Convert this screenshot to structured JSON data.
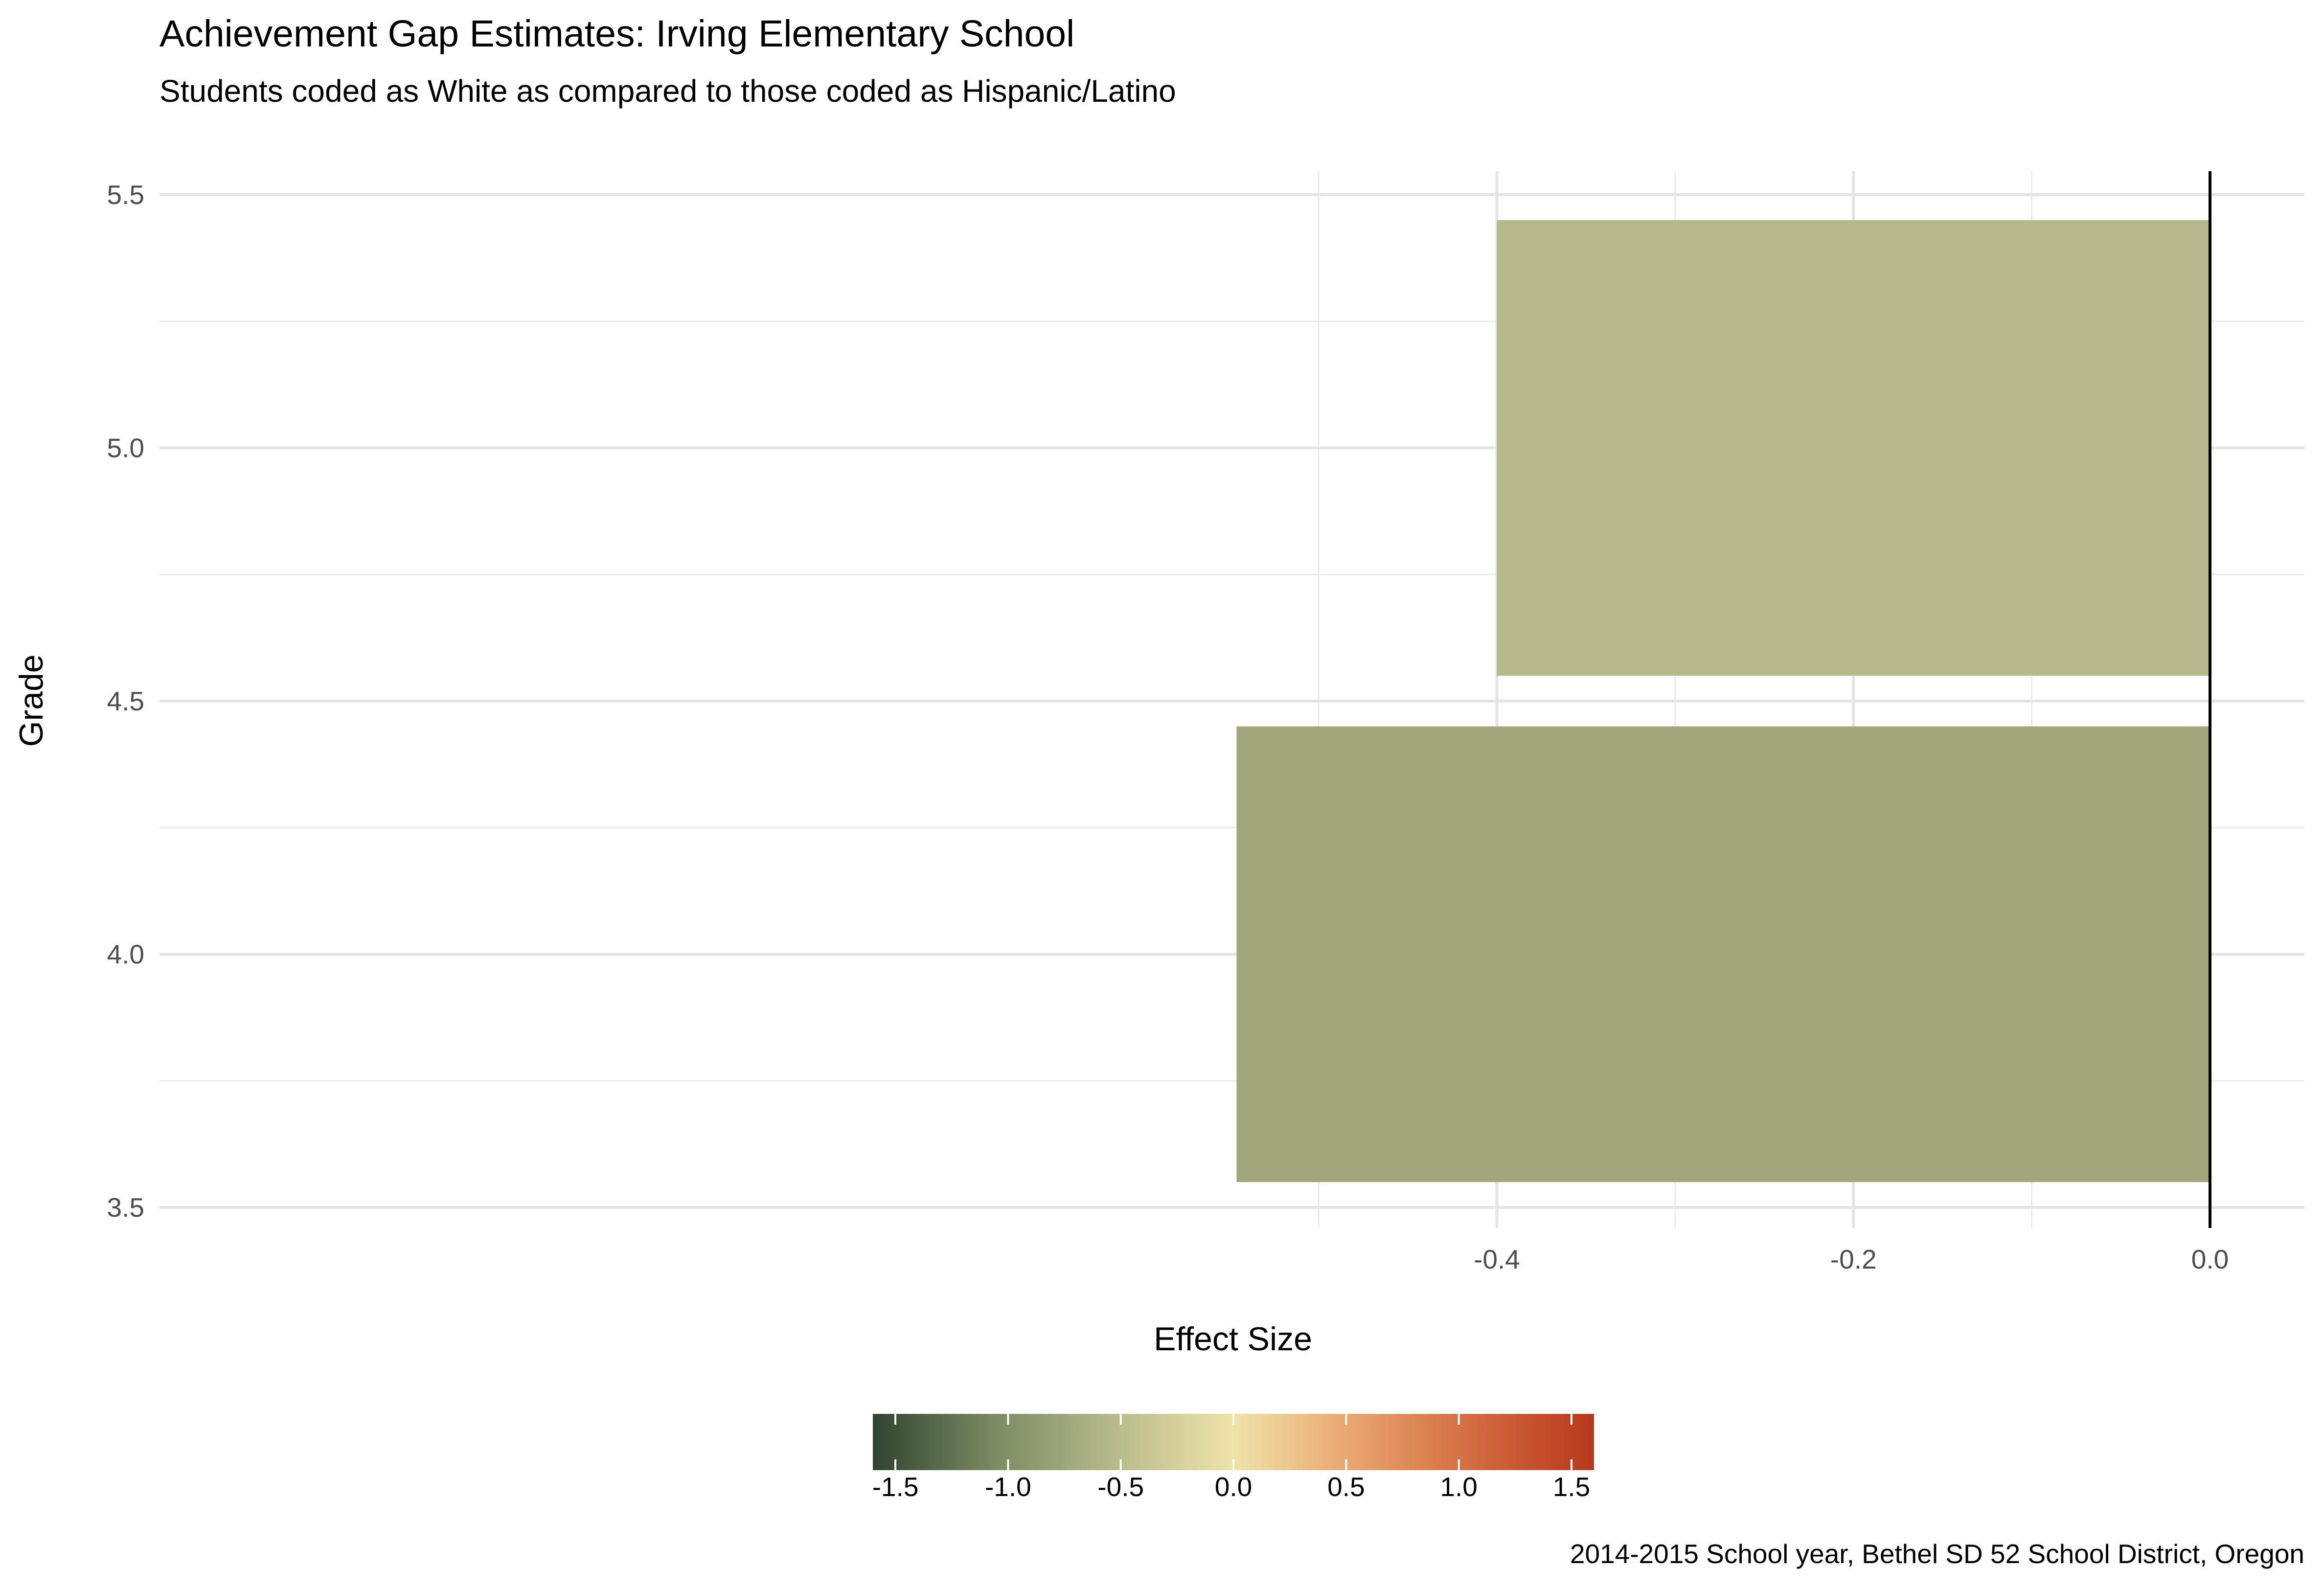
{
  "chart_data": {
    "type": "bar",
    "orientation": "horizontal",
    "title": "Achievement Gap Estimates: Irving Elementary School",
    "subtitle": "Students coded as White as compared to those coded as Hispanic/Latino",
    "xlabel": "Effect Size",
    "ylabel": "Grade",
    "caption": "2014-2015 School year, Bethel SD 52 School District, Oregon",
    "categories": [
      4,
      5
    ],
    "values": [
      -0.546,
      -0.4
    ],
    "bar_colors": [
      "#A1A77A",
      "#B6BA8B"
    ],
    "xlim": [
      -0.6,
      0.03
    ],
    "ylim": [
      3.5,
      5.55
    ],
    "xticks": [
      -0.4,
      -0.2,
      0.0
    ],
    "xtick_labels": [
      "-0.4",
      "-0.2",
      "0.0"
    ],
    "yticks": [
      3.5,
      4.0,
      4.5,
      5.0,
      5.5
    ],
    "ytick_labels": [
      "3.5",
      "4.0",
      "4.5",
      "5.0",
      "5.5"
    ],
    "reference_line_x": 0,
    "grid": true,
    "legend": {
      "type": "colorbar",
      "position": "bottom",
      "range": [
        -1.6,
        1.6
      ],
      "ticks": [
        -1.5,
        -1.0,
        -0.5,
        0.0,
        0.5,
        1.0,
        1.5
      ],
      "tick_labels": [
        "-1.5",
        "-1.0",
        "-0.5",
        "0.0",
        "0.5",
        "1.0",
        "1.5"
      ],
      "colors": [
        "#2F4430",
        "#7A8A62",
        "#B6BA8B",
        "#EFE3A9",
        "#E8A46E",
        "#D26A40",
        "#B5391C"
      ]
    }
  }
}
